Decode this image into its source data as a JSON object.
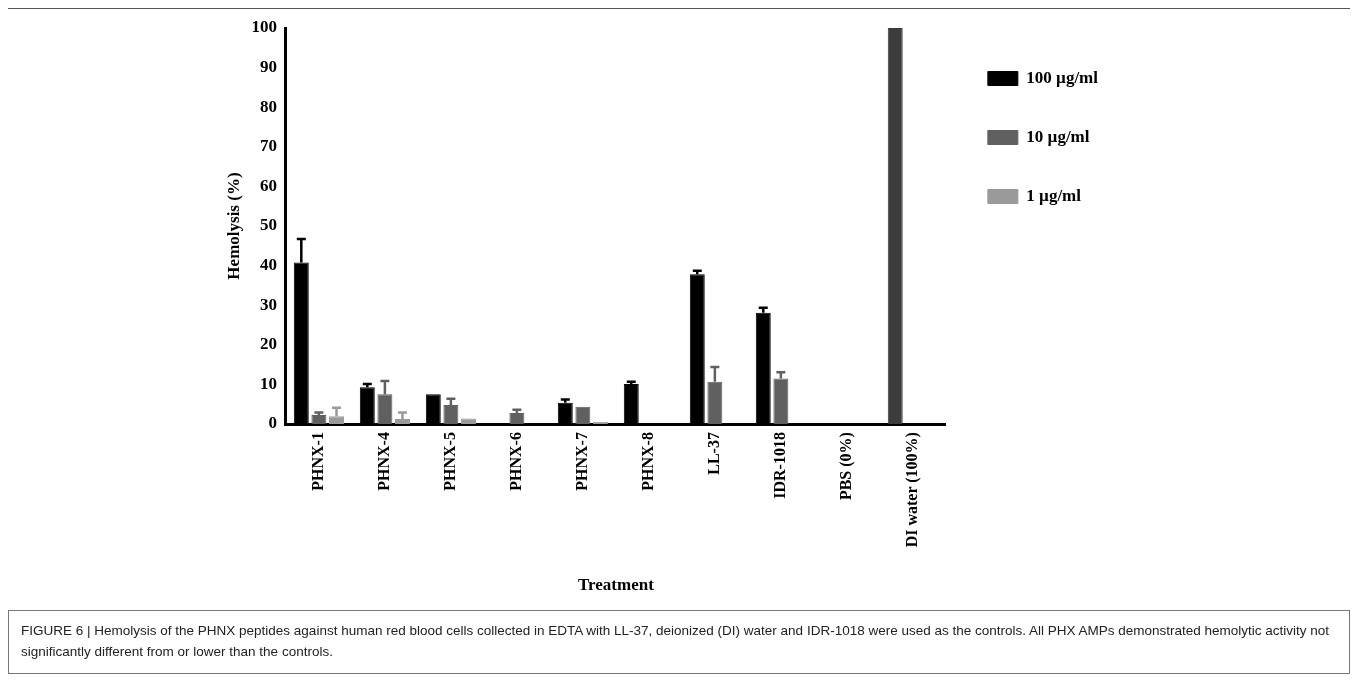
{
  "chart_data": {
    "type": "bar",
    "categories": [
      "PHNX-1",
      "PHNX-4",
      "PHNX-5",
      "PHNX-6",
      "PHNX-7",
      "PHNX-8",
      "LL-37",
      "IDR-1018",
      "PBS (0%)",
      "DI water (100%)"
    ],
    "series": [
      {
        "name": "100 µg/ml",
        "color": "#000000",
        "values": [
          40.8,
          9.3,
          7.5,
          null,
          5.4,
          10.1,
          37.8,
          28.1,
          null,
          null
        ],
        "errors": [
          5.9,
          0.8,
          null,
          null,
          0.8,
          0.6,
          0.9,
          1.3,
          null,
          null
        ]
      },
      {
        "name": "10 µg/ml",
        "color": "#606060",
        "values": [
          2.3,
          7.5,
          4.8,
          2.8,
          4.4,
          null,
          10.7,
          11.5,
          null,
          null
        ],
        "errors": [
          0.6,
          3.4,
          1.6,
          0.8,
          null,
          null,
          3.7,
          1.6,
          null,
          null
        ]
      },
      {
        "name": "1 µg/ml",
        "color": "#9a9a9a",
        "values": [
          2.0,
          1.3,
          1.4,
          null,
          0.6,
          null,
          null,
          null,
          null,
          null
        ],
        "errors": [
          2.1,
          1.6,
          null,
          null,
          null,
          null,
          null,
          null,
          null,
          null
        ]
      },
      {
        "color": "#3c3c3c",
        "values": [
          null,
          null,
          null,
          null,
          null,
          null,
          null,
          null,
          0,
          100
        ]
      }
    ],
    "ylim": [
      0,
      100
    ],
    "yticks": [
      0,
      10,
      20,
      30,
      40,
      50,
      60,
      70,
      80,
      90,
      100
    ],
    "xlabel": "Treatment",
    "ylabel": "Hemolysis (%)",
    "grid": false,
    "legend": "right",
    "annotations": [
      "FIGURE 6 | Hemolysis of the PHNX peptides against human red blood cells collected in EDTA with LL-37, deionized (DI) water and IDR-1018 were used as the controls. All PHX AMPs demonstrated hemolytic activity not significantly different from or lower than the controls."
    ]
  }
}
